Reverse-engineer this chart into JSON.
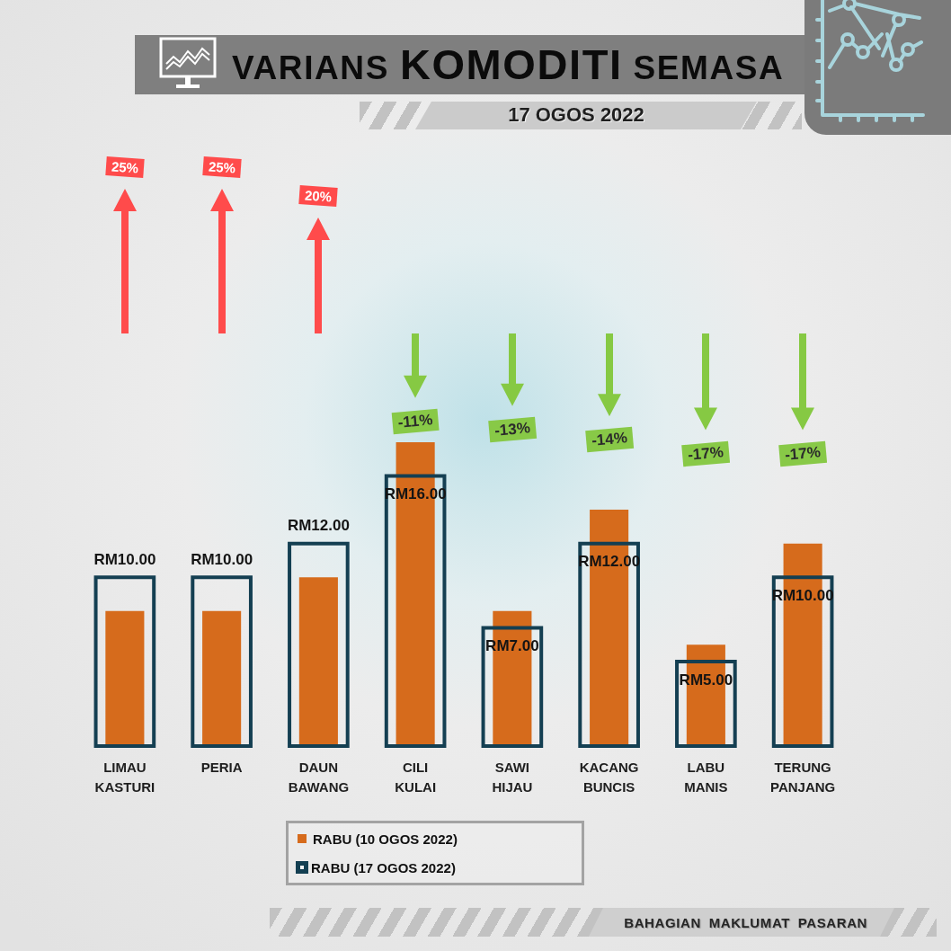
{
  "chart_data": {
    "type": "bar",
    "title": "VARIANS KOMODITI SEMASA",
    "subtitle": "17 OGOS 2022",
    "categories": [
      "LIMAU KASTURI",
      "PERIA",
      "DAUN BAWANG",
      "CILI KULAI",
      "SAWI HIJAU",
      "KACANG BUNCIS",
      "LABU MANIS",
      "TERUNG PANJANG"
    ],
    "series": [
      {
        "name": "RABU (10 OGOS 2022)",
        "color": "#d66b1c",
        "values": [
          8,
          8,
          10,
          18,
          8,
          14,
          6,
          12
        ]
      },
      {
        "name": "RABU (17 OGOS 2022)",
        "color": "#143f52",
        "values": [
          10,
          10,
          12,
          16,
          7,
          12,
          5,
          10
        ],
        "value_labels": [
          "RM10.00",
          "RM10.00",
          "RM12.00",
          "RM16.00",
          "RM7.00",
          "RM12.00",
          "RM5.00",
          "RM10.00"
        ]
      }
    ],
    "annotations": [
      "25%",
      "25%",
      "20%",
      "-11%",
      "-13%",
      "-14%",
      "-17%",
      "-17%",
      "BAHAGIAN MAKLUMAT PASARAN"
    ],
    "legend": "bottom",
    "tick_labels": "x"
  }
}
